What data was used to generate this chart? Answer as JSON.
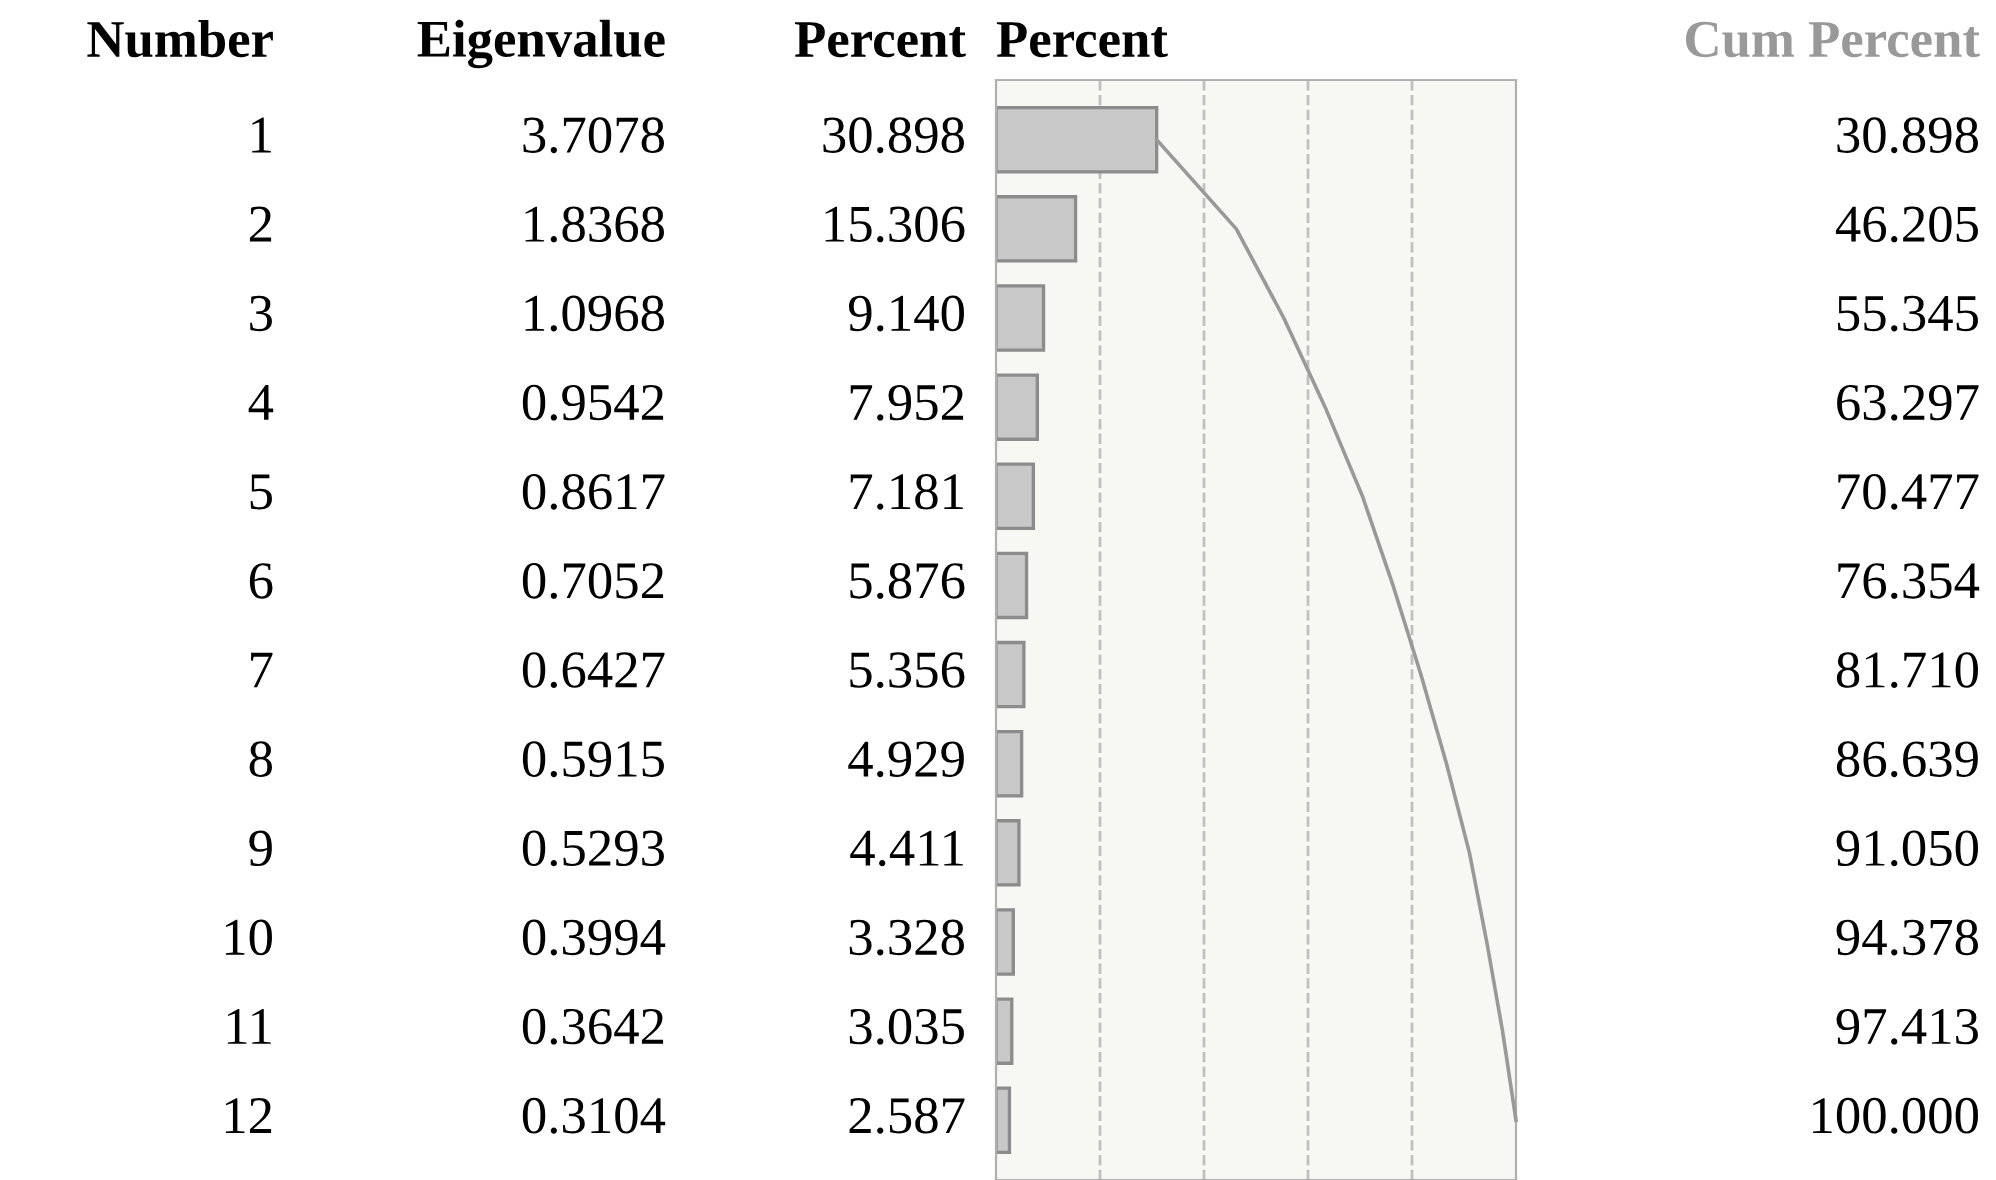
{
  "chart_data": {
    "type": "bar",
    "orientation": "horizontal",
    "ylabel": "Number",
    "xlabel": "Percent",
    "categories": [
      "1",
      "2",
      "3",
      "4",
      "5",
      "6",
      "7",
      "8",
      "9",
      "10",
      "11",
      "12"
    ],
    "series": [
      {
        "name": "Percent",
        "color": "#c8c8c8",
        "values": [
          30.898,
          15.306,
          9.14,
          7.952,
          7.181,
          5.876,
          5.356,
          4.929,
          4.411,
          3.328,
          3.035,
          2.587
        ],
        "value_labels": [
          "30.898",
          "15.306",
          "9.140",
          "7.952",
          "7.181",
          "5.876",
          "5.356",
          "4.929",
          "4.411",
          "3.328",
          "3.035",
          "2.587"
        ]
      },
      {
        "name": "Cum Percent",
        "type": "line",
        "color": "#999999",
        "values": [
          30.898,
          46.205,
          55.345,
          63.297,
          70.477,
          76.354,
          81.71,
          86.639,
          91.05,
          94.378,
          97.413,
          100.0
        ],
        "value_labels": [
          "30.898",
          "46.205",
          "55.345",
          "63.297",
          "70.477",
          "76.354",
          "81.710",
          "86.639",
          "91.050",
          "94.378",
          "97.413",
          "100.000"
        ]
      }
    ],
    "xlim": [
      0,
      100
    ],
    "xticks": [
      {
        "value": 20,
        "label": null
      },
      {
        "value": 40,
        "label": null
      },
      {
        "value": 60,
        "label": null
      },
      {
        "value": 80,
        "label": null
      }
    ],
    "annotations": [
      "Eigenvalue",
      "3.7078",
      "1.8368",
      "1.0968",
      "0.9542",
      "0.8617",
      "0.7052",
      "0.6427",
      "0.5915",
      "0.5293",
      "0.3994",
      "0.3642",
      "0.3104"
    ],
    "grid": "x",
    "line_style": "solid",
    "marker": "none"
  }
}
